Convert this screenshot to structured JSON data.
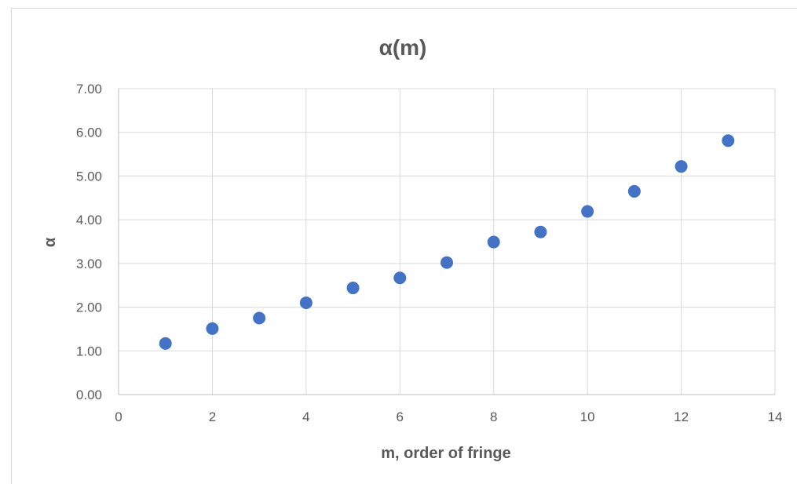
{
  "chart_data": {
    "type": "scatter",
    "title": "α(m)",
    "xlabel": "m, order of fringe",
    "ylabel": "α",
    "xlim": [
      0,
      14
    ],
    "ylim": [
      0,
      7
    ],
    "x_ticks": [
      "0",
      "2",
      "4",
      "6",
      "8",
      "10",
      "12",
      "14"
    ],
    "y_ticks": [
      "0.00",
      "1.00",
      "2.00",
      "3.00",
      "4.00",
      "5.00",
      "6.00",
      "7.00"
    ],
    "grid": true,
    "legend": "none",
    "series": [
      {
        "x": [
          1,
          2,
          3,
          4,
          5,
          6,
          7,
          8,
          9,
          10,
          11,
          12,
          13
        ],
        "y": [
          1.17,
          1.51,
          1.75,
          2.1,
          2.44,
          2.67,
          3.02,
          3.49,
          3.72,
          4.19,
          4.65,
          5.22,
          5.81
        ],
        "color": "#4472c4"
      }
    ]
  }
}
